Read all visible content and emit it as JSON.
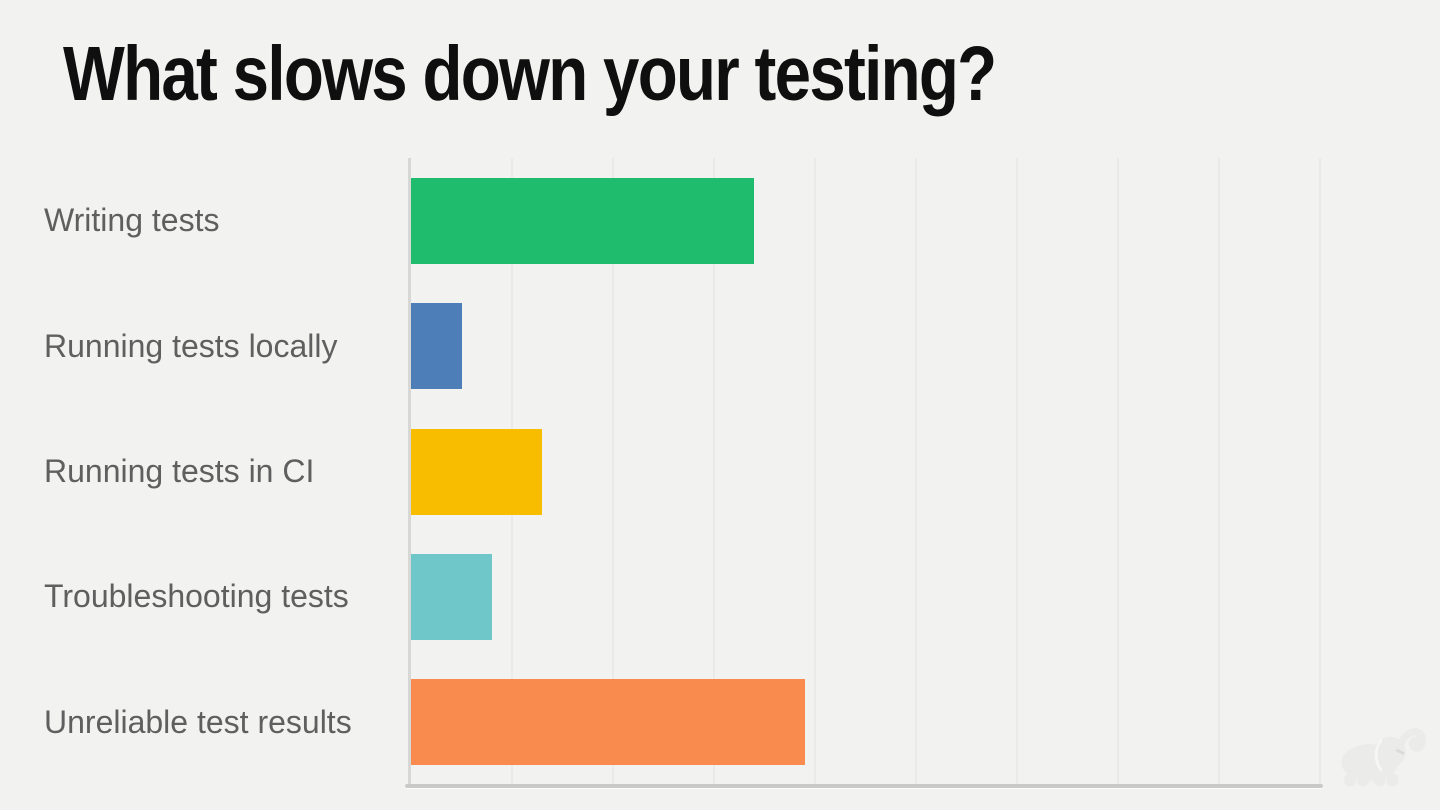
{
  "slide": {
    "title": "What slows down your testing?",
    "background_color": "#f2f2f1"
  },
  "chart_data": {
    "type": "bar",
    "orientation": "horizontal",
    "title": "",
    "xlabel": "",
    "ylabel": "",
    "categories": [
      "Writing tests",
      "Running tests locally",
      "Running tests in CI",
      "Troubleshooting tests",
      "Unreliable test results"
    ],
    "values": [
      34,
      5,
      13,
      8,
      39
    ],
    "value_unit": "percent-estimated-from-gridlines",
    "series_colors": [
      "#1fbc6e",
      "#4e7eb8",
      "#f9bd00",
      "#6fc7ca",
      "#f98b4e"
    ],
    "xlim": [
      0,
      90
    ],
    "grid_step": 10,
    "grid": "vertical, faint, no tick labels",
    "legend": "none",
    "data_labels": "none",
    "category_label_color": "#5f5f5f",
    "gridline_color": "#eaeae9",
    "axis_line_color": "#c9c9c8"
  },
  "branding": {
    "logo": "gradle-elephant-watermark",
    "logo_color": "#ebebea"
  }
}
